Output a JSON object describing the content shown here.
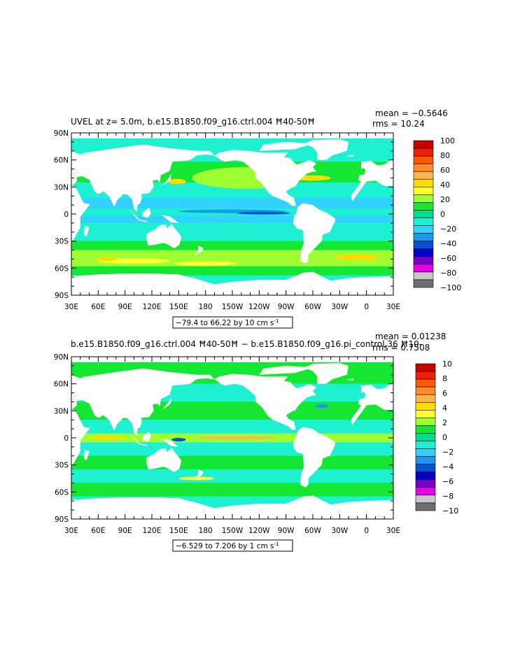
{
  "chart_data": [
    {
      "type": "heatmap",
      "title_left": "UVEL at z=    5.0m, b.e15.B1850.f09_g16.ctrl.004  Ħ40-50Ħ",
      "stats_mean": "mean = −0.5646",
      "stats_rms": "rms = 10.24",
      "range_label": "−79.4 to 66.22 by 10 cm s",
      "range_sup": "-1",
      "x_ticks": [
        "30E",
        "60E",
        "90E",
        "120E",
        "150E",
        "180",
        "150W",
        "120W",
        "90W",
        "60W",
        "30W",
        "0",
        "30E"
      ],
      "y_ticks": [
        "90N",
        "60N",
        "30N",
        "0",
        "30S",
        "60S",
        "90S"
      ],
      "colorbar_labels": [
        "100",
        "80",
        "60",
        "40",
        "20",
        "0",
        "−20",
        "−40",
        "−60",
        "−80",
        "−100"
      ],
      "colorbar_levels": [
        100,
        80,
        60,
        40,
        20,
        0,
        -20,
        -40,
        -60,
        -80,
        -100
      ],
      "colors": [
        "#c80000",
        "#f01e0a",
        "#ff5a00",
        "#ff8c28",
        "#ffb450",
        "#ffdc00",
        "#ffff32",
        "#a0ff32",
        "#14e632",
        "#00dc8c",
        "#1ef0d2",
        "#32d2ff",
        "#1e96f0",
        "#0a50d2",
        "#0000c8",
        "#7800c8",
        "#e600e6",
        "#c8c8c8",
        "#6e6e6e"
      ],
      "xlim": [
        30,
        390
      ],
      "ylim": [
        -90,
        90
      ]
    },
    {
      "type": "heatmap",
      "title_left": "b.e15.B1850.f09_g16.ctrl.004  Ħ40-50Ħ  −  b.e15.B1850.f09_g16.pi_control.36  Ħ10-",
      "stats_mean": "mean = 0.01238",
      "stats_rms": "rms = 0.7508",
      "range_label": "−6.529 to 7.206 by 1 cm s",
      "range_sup": "-1",
      "x_ticks": [
        "30E",
        "60E",
        "90E",
        "120E",
        "150E",
        "180",
        "150W",
        "120W",
        "90W",
        "60W",
        "30W",
        "0",
        "30E"
      ],
      "y_ticks": [
        "90N",
        "60N",
        "30N",
        "0",
        "30S",
        "60S",
        "90S"
      ],
      "colorbar_labels": [
        "10",
        "8",
        "6",
        "4",
        "2",
        "0",
        "−2",
        "−4",
        "−6",
        "−8",
        "−10"
      ],
      "colorbar_levels": [
        10,
        8,
        6,
        4,
        2,
        0,
        -2,
        -4,
        -6,
        -8,
        -10
      ],
      "colors": [
        "#c80000",
        "#f01e0a",
        "#ff5a00",
        "#ff8c28",
        "#ffb450",
        "#ffdc00",
        "#ffff32",
        "#a0ff32",
        "#14e632",
        "#00dc8c",
        "#1ef0d2",
        "#32d2ff",
        "#1e96f0",
        "#0a50d2",
        "#0000c8",
        "#7800c8",
        "#e600e6",
        "#c8c8c8",
        "#6e6e6e"
      ],
      "xlim": [
        30,
        390
      ],
      "ylim": [
        -90,
        90
      ]
    }
  ]
}
